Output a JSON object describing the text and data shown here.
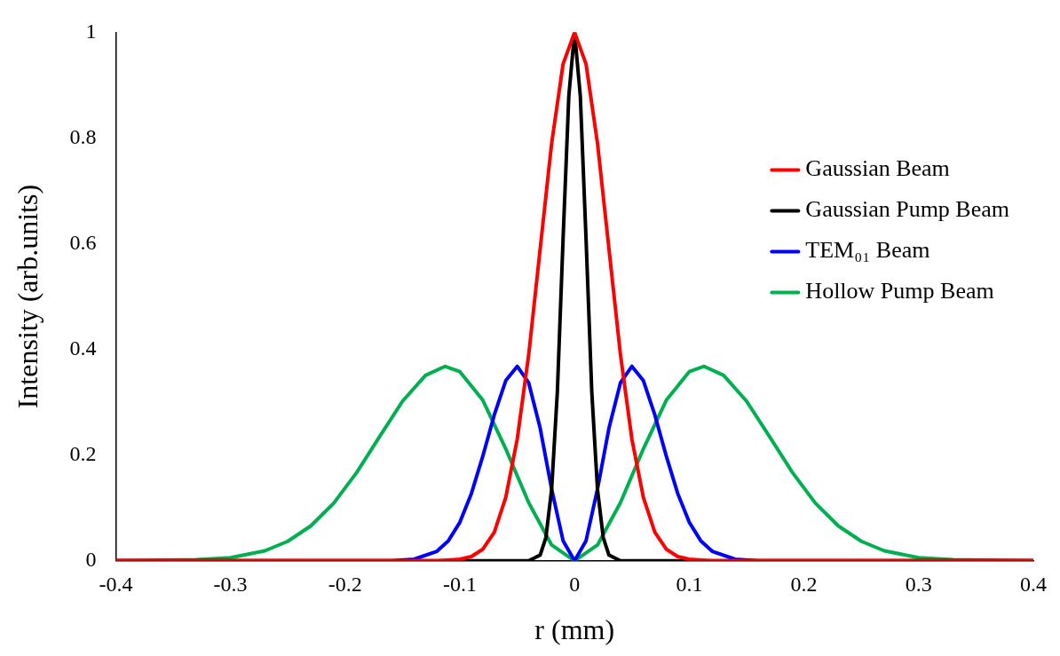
{
  "chart_data": {
    "type": "line",
    "xlabel": "r (mm)",
    "ylabel": "Intensity (arb.units)",
    "xlim": [
      -0.4,
      0.4
    ],
    "xticks": [
      -0.4,
      -0.3,
      -0.2,
      -0.1,
      0,
      0.1,
      0.2,
      0.3,
      0.4
    ],
    "ylim": [
      0,
      1
    ],
    "yticks": [
      0,
      0.2,
      0.4,
      0.6,
      0.8,
      1
    ],
    "grid": false,
    "legend": "right",
    "marker": "none",
    "line_style": "solid",
    "series": [
      {
        "name": "Gaussian Beam",
        "color": "#ff0000",
        "x": [
          -0.4,
          -0.12,
          -0.1,
          -0.09,
          -0.08,
          -0.07,
          -0.06,
          -0.05,
          -0.04,
          -0.03,
          -0.02,
          -0.01,
          0,
          0.01,
          0.02,
          0.03,
          0.04,
          0.05,
          0.06,
          0.07,
          0.08,
          0.09,
          0.1,
          0.12,
          0.4
        ],
        "values": [
          0,
          0,
          0.003,
          0.008,
          0.022,
          0.054,
          0.12,
          0.23,
          0.39,
          0.59,
          0.79,
          0.94,
          1,
          0.94,
          0.79,
          0.59,
          0.39,
          0.23,
          0.12,
          0.054,
          0.022,
          0.008,
          0.003,
          0,
          0
        ]
      },
      {
        "name": "Gaussian Pump Beam",
        "color": "#000000",
        "x": [
          -0.4,
          -0.04,
          -0.03,
          -0.025,
          -0.02,
          -0.015,
          -0.01,
          -0.005,
          0,
          0.005,
          0.01,
          0.015,
          0.02,
          0.025,
          0.03,
          0.04,
          0.4
        ],
        "values": [
          0,
          0,
          0.011,
          0.044,
          0.135,
          0.32,
          0.61,
          0.88,
          1,
          0.88,
          0.61,
          0.32,
          0.135,
          0.044,
          0.011,
          0,
          0
        ]
      },
      {
        "name": "TEM₀₁ Beam",
        "color": "#0000ff",
        "x": [
          -0.4,
          -0.16,
          -0.14,
          -0.12,
          -0.11,
          -0.1,
          -0.09,
          -0.08,
          -0.07,
          -0.06,
          -0.05,
          -0.04,
          -0.03,
          -0.02,
          -0.01,
          0,
          0.01,
          0.02,
          0.03,
          0.04,
          0.05,
          0.06,
          0.07,
          0.08,
          0.09,
          0.1,
          0.11,
          0.12,
          0.14,
          0.16,
          0.4
        ],
        "values": [
          0,
          0,
          0.003,
          0.018,
          0.038,
          0.073,
          0.127,
          0.198,
          0.276,
          0.341,
          0.368,
          0.337,
          0.251,
          0.136,
          0.038,
          0,
          0.038,
          0.136,
          0.251,
          0.337,
          0.368,
          0.341,
          0.276,
          0.198,
          0.127,
          0.073,
          0.038,
          0.018,
          0.003,
          0,
          0
        ]
      },
      {
        "name": "Hollow Pump Beam",
        "color": "#00b050",
        "x": [
          -0.4,
          -0.33,
          -0.3,
          -0.27,
          -0.25,
          -0.23,
          -0.21,
          -0.19,
          -0.17,
          -0.15,
          -0.13,
          -0.113,
          -0.1,
          -0.08,
          -0.06,
          -0.04,
          -0.02,
          0,
          0.02,
          0.04,
          0.06,
          0.08,
          0.1,
          0.113,
          0.13,
          0.15,
          0.17,
          0.19,
          0.21,
          0.23,
          0.25,
          0.27,
          0.3,
          0.33,
          0.4
        ],
        "values": [
          0,
          0.002,
          0.006,
          0.019,
          0.037,
          0.066,
          0.109,
          0.167,
          0.235,
          0.302,
          0.351,
          0.368,
          0.358,
          0.304,
          0.212,
          0.11,
          0.03,
          0,
          0.03,
          0.11,
          0.212,
          0.304,
          0.358,
          0.368,
          0.351,
          0.302,
          0.235,
          0.167,
          0.109,
          0.066,
          0.037,
          0.019,
          0.006,
          0.002,
          0
        ]
      }
    ]
  }
}
